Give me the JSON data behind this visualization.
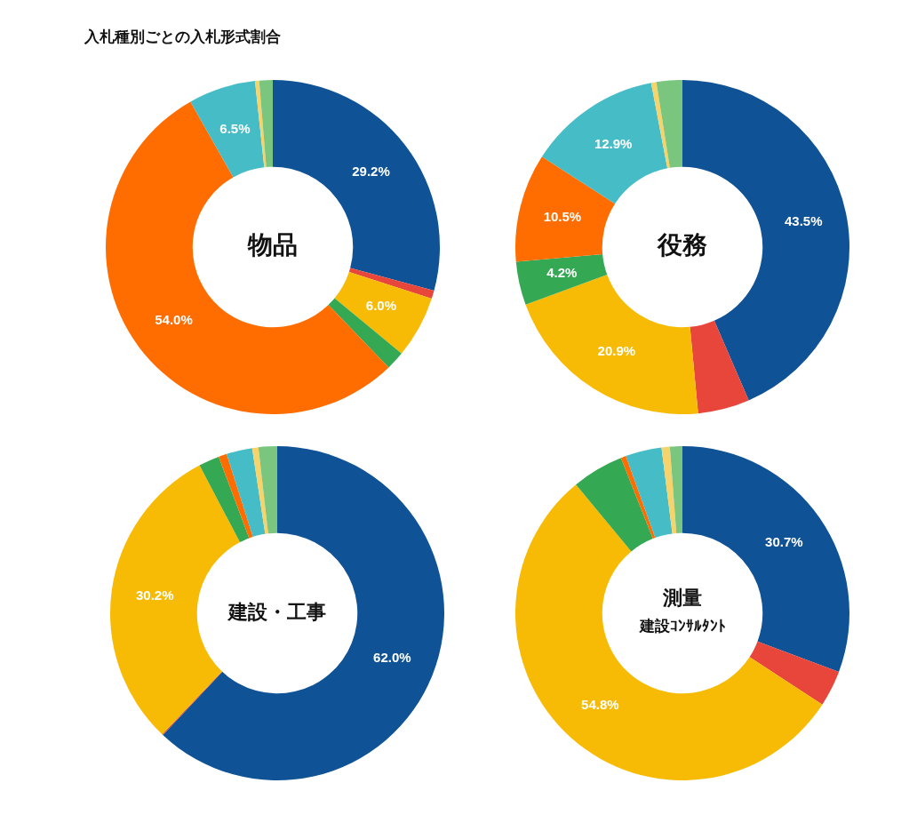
{
  "chart_data": [
    {
      "type": "donut",
      "title": "物品",
      "annotations": [
        "入札種別ごとの入札形式割合"
      ],
      "categories": [
        null,
        null,
        null,
        null,
        null,
        null,
        null,
        null
      ],
      "values": [
        29.2,
        0.8,
        6.0,
        1.8,
        54.0,
        6.5,
        0.4,
        1.3
      ],
      "value_labels": [
        "29.2%",
        null,
        "6.0%",
        null,
        "54.0%",
        "6.5%",
        null,
        null
      ],
      "colors": [
        "#0f5396",
        "#e8463a",
        "#f7bb05",
        "#34a853",
        "#ff6d00",
        "#46bdc6",
        "#f6d36b",
        "#7bc67e"
      ]
    },
    {
      "type": "donut",
      "title": "役務",
      "categories": [
        null,
        null,
        null,
        null,
        null,
        null,
        null,
        null
      ],
      "values": [
        43.5,
        5.0,
        20.9,
        4.2,
        10.5,
        12.9,
        0.5,
        2.5
      ],
      "value_labels": [
        "43.5%",
        null,
        "20.9%",
        "4.2%",
        "10.5%",
        "12.9%",
        null,
        null
      ],
      "colors": [
        "#0f5396",
        "#e8463a",
        "#f7bb05",
        "#34a853",
        "#ff6d00",
        "#46bdc6",
        "#f6d36b",
        "#7bc67e"
      ]
    },
    {
      "type": "donut",
      "title": "建設・工事",
      "categories": [
        null,
        null,
        null,
        null,
        null,
        null,
        null,
        null
      ],
      "values": [
        62.0,
        0.1,
        30.2,
        2.0,
        0.8,
        2.5,
        0.6,
        1.8
      ],
      "value_labels": [
        "62.0%",
        null,
        "30.2%",
        null,
        null,
        null,
        null,
        null
      ],
      "colors": [
        "#0f5396",
        "#e8463a",
        "#f7bb05",
        "#34a853",
        "#ff6d00",
        "#46bdc6",
        "#f6d36b",
        "#7bc67e"
      ]
    },
    {
      "type": "donut",
      "title": "測量",
      "subtitle": "建設ｺﾝｻﾙﾀﾝﾄ",
      "categories": [
        null,
        null,
        null,
        null,
        null,
        null,
        null,
        null
      ],
      "values": [
        30.7,
        3.5,
        54.8,
        5.0,
        0.5,
        3.5,
        0.8,
        1.2
      ],
      "value_labels": [
        "30.7%",
        null,
        "54.8%",
        null,
        null,
        null,
        null,
        null
      ],
      "colors": [
        "#0f5396",
        "#e8463a",
        "#f7bb05",
        "#34a853",
        "#ff6d00",
        "#46bdc6",
        "#f6d36b",
        "#7bc67e"
      ]
    }
  ]
}
